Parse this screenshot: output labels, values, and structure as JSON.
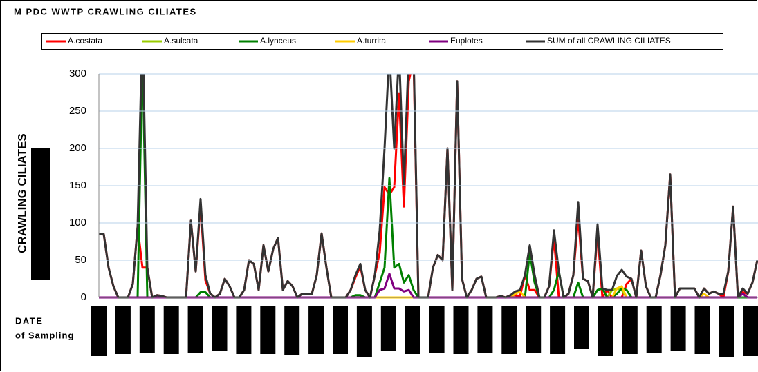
{
  "chart_data": {
    "type": "line",
    "title": "M PDC WWTP CRAWLING CILIATES",
    "y_label": "CRAWLING CILIATES",
    "x_label": [
      "DATE",
      "of Sampling"
    ],
    "ylim": [
      0,
      300
    ],
    "yticks": [
      0,
      50,
      100,
      150,
      200,
      250,
      300
    ],
    "grid": true,
    "legend": "top",
    "series": [
      {
        "name": "A.costata",
        "color": "#ff0000",
        "values": [
          85,
          85,
          40,
          15,
          0,
          0,
          0,
          18,
          95,
          40,
          40,
          0,
          3,
          2,
          0,
          0,
          0,
          0,
          0,
          103,
          35,
          125,
          23,
          5,
          0,
          5,
          25,
          15,
          0,
          0,
          10,
          50,
          45,
          10,
          70,
          35,
          65,
          80,
          10,
          22,
          15,
          0,
          5,
          5,
          5,
          30,
          86,
          40,
          0,
          0,
          0,
          0,
          10,
          27,
          42,
          10,
          0,
          30,
          60,
          148,
          138,
          148,
          273,
          122,
          290,
          320,
          0,
          0,
          0,
          40,
          57,
          50,
          200,
          10,
          290,
          25,
          0,
          10,
          25,
          28,
          0,
          0,
          0,
          2,
          0,
          3,
          3,
          2,
          30,
          10,
          10,
          0,
          0,
          15,
          80,
          0,
          0,
          5,
          30,
          108,
          25,
          22,
          0,
          88,
          0,
          10,
          0,
          0,
          0,
          18,
          25,
          0,
          63,
          15,
          0,
          0,
          30,
          70,
          165,
          0,
          12,
          12,
          12,
          12,
          0,
          12,
          5,
          8,
          5,
          0,
          35,
          122,
          0,
          7,
          5,
          20,
          50
        ]
      },
      {
        "name": "A.sulcata",
        "color": "#99cc00",
        "values": [
          0,
          0,
          0,
          0,
          0,
          0,
          0,
          0,
          0,
          0,
          0,
          0,
          0,
          0,
          0,
          0,
          0,
          0,
          0,
          0,
          0,
          0,
          0,
          0,
          0,
          0,
          0,
          0,
          0,
          0,
          0,
          0,
          0,
          0,
          0,
          0,
          0,
          0,
          0,
          0,
          0,
          0,
          0,
          0,
          0,
          0,
          0,
          0,
          0,
          0,
          0,
          0,
          0,
          0,
          0,
          0,
          0,
          0,
          0,
          0,
          0,
          0,
          0,
          0,
          0,
          0,
          0,
          0,
          0,
          0,
          0,
          0,
          0,
          0,
          0,
          0,
          0,
          0,
          0,
          0,
          0,
          0,
          0,
          0,
          0,
          0,
          0,
          0,
          0,
          0,
          0,
          0,
          0,
          0,
          0,
          0,
          0,
          0,
          0,
          0,
          0,
          0,
          0,
          0,
          0,
          0,
          10,
          12,
          10,
          0,
          0,
          0,
          0,
          0,
          0,
          0,
          0,
          0,
          0,
          0,
          0,
          0,
          0,
          0,
          0,
          0,
          0,
          0,
          0,
          0,
          0,
          0,
          0,
          0,
          0,
          0,
          0
        ]
      },
      {
        "name": "A.lynceus",
        "color": "#008000",
        "values": [
          0,
          0,
          0,
          0,
          0,
          0,
          0,
          0,
          0,
          330,
          0,
          0,
          0,
          0,
          0,
          0,
          0,
          0,
          0,
          0,
          0,
          7,
          7,
          0,
          0,
          0,
          0,
          0,
          0,
          0,
          0,
          0,
          0,
          0,
          0,
          0,
          0,
          0,
          0,
          0,
          0,
          0,
          0,
          0,
          0,
          0,
          0,
          0,
          0,
          0,
          0,
          0,
          0,
          3,
          3,
          0,
          0,
          0,
          20,
          40,
          160,
          40,
          45,
          20,
          30,
          10,
          0,
          0,
          0,
          0,
          0,
          0,
          0,
          0,
          0,
          0,
          0,
          0,
          0,
          0,
          0,
          0,
          0,
          0,
          0,
          0,
          0,
          0,
          0,
          60,
          20,
          0,
          0,
          0,
          10,
          35,
          0,
          0,
          0,
          20,
          0,
          0,
          0,
          10,
          12,
          0,
          0,
          5,
          12,
          10,
          0,
          0,
          0,
          0,
          0,
          0,
          0,
          0,
          0,
          0,
          0,
          0,
          0,
          0,
          0,
          0,
          0,
          0,
          0,
          0,
          0,
          0,
          0,
          0,
          0,
          0,
          0
        ]
      },
      {
        "name": "A.turrita",
        "color": "#ffcc00",
        "values": [
          0,
          0,
          0,
          0,
          0,
          0,
          0,
          0,
          0,
          0,
          0,
          0,
          0,
          0,
          0,
          0,
          0,
          0,
          0,
          0,
          0,
          0,
          0,
          0,
          0,
          0,
          0,
          0,
          0,
          0,
          0,
          0,
          0,
          0,
          0,
          0,
          0,
          0,
          0,
          0,
          0,
          0,
          0,
          0,
          0,
          0,
          0,
          0,
          0,
          0,
          0,
          0,
          0,
          0,
          0,
          0,
          0,
          0,
          0,
          0,
          0,
          0,
          0,
          0,
          0,
          0,
          0,
          0,
          0,
          0,
          0,
          0,
          0,
          0,
          0,
          0,
          0,
          0,
          0,
          0,
          0,
          0,
          0,
          0,
          0,
          0,
          5,
          8,
          0,
          0,
          0,
          0,
          0,
          0,
          0,
          0,
          0,
          0,
          0,
          0,
          0,
          0,
          0,
          0,
          0,
          0,
          0,
          12,
          15,
          0,
          0,
          0,
          0,
          0,
          0,
          0,
          0,
          0,
          0,
          0,
          0,
          0,
          0,
          0,
          0,
          5,
          0,
          0,
          0,
          0,
          0,
          0,
          0
        ]
      },
      {
        "name": "Euplotes",
        "color": "#800080",
        "values": [
          0,
          0,
          0,
          0,
          0,
          0,
          0,
          0,
          0,
          0,
          0,
          0,
          0,
          0,
          0,
          0,
          0,
          0,
          0,
          0,
          0,
          0,
          0,
          0,
          0,
          0,
          0,
          0,
          0,
          0,
          0,
          0,
          0,
          0,
          0,
          0,
          0,
          0,
          0,
          0,
          0,
          0,
          0,
          0,
          0,
          0,
          0,
          0,
          0,
          0,
          0,
          0,
          0,
          0,
          0,
          0,
          0,
          0,
          10,
          12,
          32,
          12,
          12,
          8,
          10,
          0,
          0,
          0,
          0,
          0,
          0,
          0,
          0,
          0,
          0,
          0,
          0,
          0,
          0,
          0,
          0,
          0,
          0,
          0,
          0,
          0,
          0,
          0,
          0,
          0,
          0,
          0,
          0,
          0,
          0,
          0,
          0,
          0,
          0,
          0,
          0,
          0,
          0,
          0,
          0,
          0,
          0,
          0,
          0,
          0,
          0,
          0,
          0,
          0,
          0,
          0,
          0,
          0,
          0,
          0,
          0,
          0,
          0,
          0,
          0,
          0,
          0,
          0,
          0,
          0,
          0,
          0,
          0,
          5,
          0,
          0,
          0
        ]
      },
      {
        "name": "SUM of all CRAWLING CILIATES",
        "color": "#333333",
        "values": [
          85,
          85,
          40,
          15,
          0,
          0,
          0,
          18,
          95,
          370,
          40,
          0,
          3,
          2,
          0,
          0,
          0,
          0,
          0,
          103,
          35,
          132,
          30,
          5,
          0,
          5,
          25,
          15,
          0,
          0,
          10,
          50,
          45,
          10,
          70,
          35,
          65,
          80,
          10,
          22,
          15,
          0,
          5,
          5,
          5,
          30,
          86,
          40,
          0,
          0,
          0,
          0,
          10,
          30,
          45,
          10,
          0,
          30,
          90,
          200,
          330,
          200,
          330,
          150,
          330,
          330,
          0,
          0,
          0,
          40,
          57,
          50,
          200,
          10,
          290,
          25,
          0,
          10,
          25,
          28,
          0,
          0,
          0,
          2,
          0,
          3,
          8,
          10,
          30,
          70,
          30,
          0,
          0,
          15,
          90,
          35,
          0,
          5,
          30,
          128,
          25,
          22,
          0,
          98,
          12,
          10,
          10,
          29,
          37,
          28,
          25,
          0,
          63,
          15,
          0,
          0,
          30,
          70,
          165,
          0,
          12,
          12,
          12,
          12,
          0,
          12,
          5,
          8,
          5,
          5,
          35,
          122,
          0,
          12,
          5,
          20,
          50
        ]
      }
    ]
  }
}
